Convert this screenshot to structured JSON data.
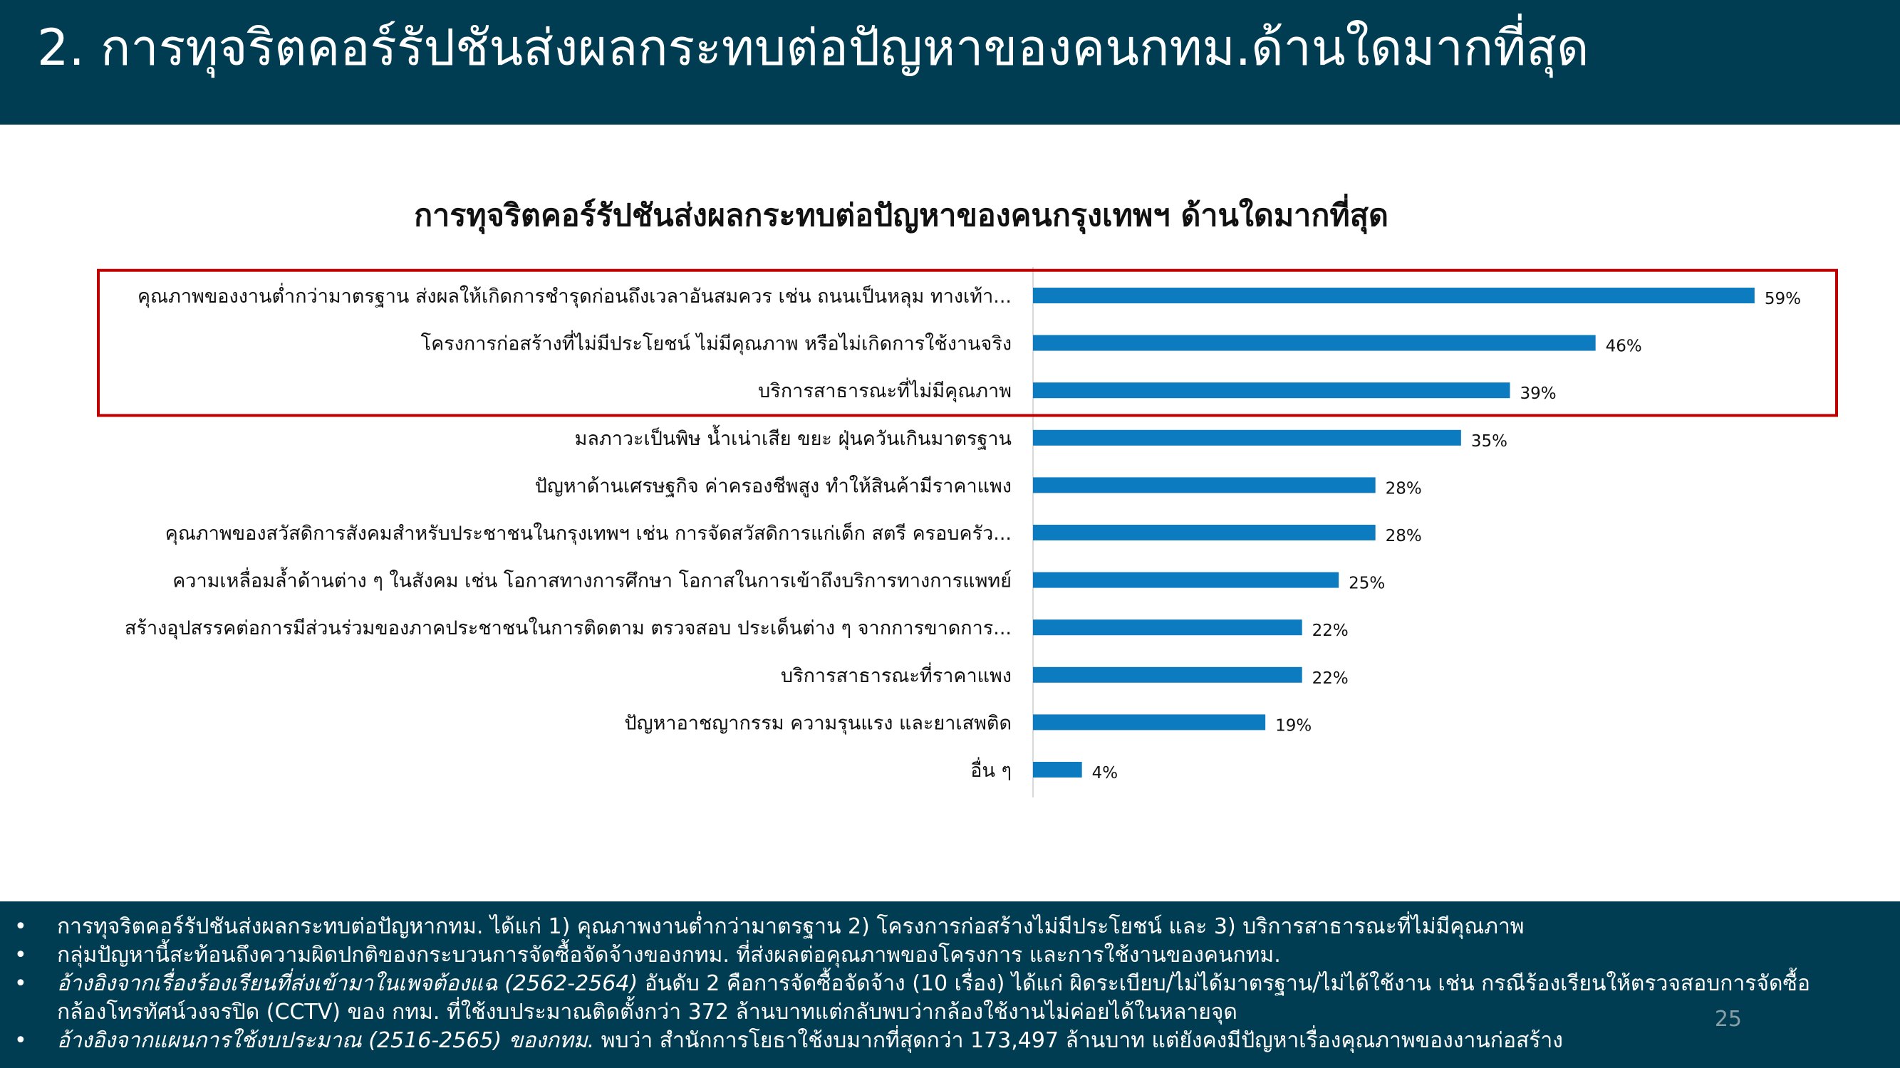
{
  "header": {
    "title": "2. การทุจริตคอร์รัปชันส่งผลกระทบต่อปัญหาของคนกทม.ด้านใดมากที่สุด"
  },
  "chart_data": {
    "type": "bar",
    "orientation": "horizontal",
    "title": "การทุจริตคอร์รัปชันส่งผลกระทบต่อปัญหาของคนกรุงเทพฯ ด้านใดมากที่สุด",
    "categories": [
      "คุณภาพของงานต่ำกว่ามาตรฐาน ส่งผลให้เกิดการชำรุดก่อนถึงเวลาอันสมควร เช่น ถนนเป็นหลุม ทางเท้า...",
      "โครงการก่อสร้างที่ไม่มีประโยชน์ ไม่มีคุณภาพ หรือไม่เกิดการใช้งานจริง",
      "บริการสาธารณะที่ไม่มีคุณภาพ",
      "มลภาวะเป็นพิษ น้ำเน่าเสีย ขยะ ฝุ่นควันเกินมาตรฐาน",
      "ปัญหาด้านเศรษฐกิจ ค่าครองชีพสูง ทำให้สินค้ามีราคาแพง",
      "คุณภาพของสวัสดิการสังคมสำหรับประชาชนในกรุงเทพฯ เช่น การจัดสวัสดิการแก่เด็ก สตรี ครอบครัว...",
      "ความเหลื่อมล้ำด้านต่าง ๆ ในสังคม เช่น โอกาสทางการศึกษา โอกาสในการเข้าถึงบริการทางการแพทย์",
      "สร้างอุปสรรคต่อการมีส่วนร่วมของภาคประชาชนในการติดตาม ตรวจสอบ ประเด็นต่าง ๆ จากการขาดการ...",
      "บริการสาธารณะที่ราคาแพง",
      "ปัญหาอาชญากรรม ความรุนแรง และยาเสพติด",
      "อื่น ๆ"
    ],
    "values": [
      59,
      46,
      39,
      35,
      28,
      28,
      25,
      22,
      22,
      19,
      4
    ],
    "value_labels": [
      "59%",
      "46%",
      "39%",
      "35%",
      "28%",
      "28%",
      "25%",
      "22%",
      "22%",
      "19%",
      "4%"
    ],
    "unit": "%",
    "xlim": [
      0,
      60
    ],
    "highlighted_categories": 3,
    "grid": false,
    "legend": "none",
    "colors": {
      "bar": "#0c7bbf",
      "highlight_box": "#c00000",
      "axis": "#d9d9d9"
    }
  },
  "notes": [
    {
      "text": "การทุจริตคอร์รัปชันส่งผลกระทบต่อปัญหากทม. ได้แก่ 1) คุณภาพงานต่ำกว่ามาตรฐาน 2) โครงการก่อสร้างไม่มีประโยชน์ และ 3) บริการสาธารณะที่ไม่มีคุณภาพ"
    },
    {
      "text": "กลุ่มปัญหานี้สะท้อนถึงความผิดปกติของกระบวนการจัดซื้อจัดจ้างของกทม. ที่ส่งผลต่อคุณภาพของโครงการ และการใช้งานของคนกทม."
    },
    {
      "italic": "อ้างอิงจากเรื่องร้องเรียนที่ส่งเข้ามาในเพจต้องแฉ (2562-2564)",
      "text": " อันดับ 2 คือการจัดซื้อจัดจ้าง (10 เรื่อง) ได้แก่ ผิดระเบียบ/ไม่ได้มาตรฐาน/ไม่ได้ใช้งาน เช่น กรณีร้องเรียนให้ตรวจสอบการจัดซื้อ",
      "line2": "กล้องโทรทัศน์วงจรปิด (CCTV) ของ กทม. ที่ใช้งบประมาณติดตั้งกว่า 372 ล้านบาทแต่กลับพบว่ากล้องใช้งานไม่ค่อยได้ในหลายจุด"
    },
    {
      "italic": "อ้างอิงจากแผนการใช้งบประมาณ (2516-2565) ของกทม.",
      "text": " พบว่า สำนักการโยธาใช้งบมากที่สุดกว่า 173,497 ล้านบาท แต่ยังคงมีปัญหาเรื่องคุณภาพของงานก่อสร้าง"
    }
  ],
  "page_number": "25"
}
